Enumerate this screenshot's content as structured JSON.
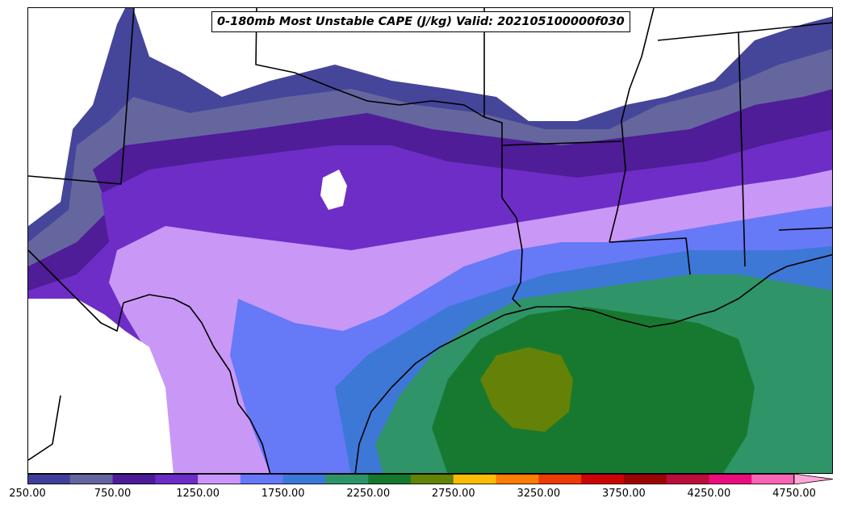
{
  "map": {
    "title": "0-180mb Most Unstable CAPE (J/kg) Valid: 202105100000f030",
    "field": "Most Unstable CAPE",
    "units": "J/kg",
    "valid_time": "202105100000",
    "forecast_hour": "f030",
    "region_depicted": "South-central United States and northwestern Gulf of Mexico"
  },
  "colorbar": {
    "min": 250,
    "max": 5000,
    "interval": 250,
    "extend": "max",
    "tick_labels": [
      "250.00",
      "750.00",
      "1250.00",
      "1750.00",
      "2250.00",
      "2750.00",
      "3250.00",
      "3750.00",
      "4250.00",
      "4750.00"
    ],
    "colors": [
      "#3f3f99",
      "#6464a0",
      "#4c1c98",
      "#6c2cc8",
      "#c896f8",
      "#6478f8",
      "#3c78d8",
      "#2e9468",
      "#16782e",
      "#628208",
      "#fcbc04",
      "#fc7c04",
      "#ec3c04",
      "#cc0404",
      "#9c0404",
      "#bc0c3c",
      "#ec0c7c",
      "#fc64b4",
      "#ffa8d8"
    ],
    "arrow_color": "#ffa8d8"
  }
}
